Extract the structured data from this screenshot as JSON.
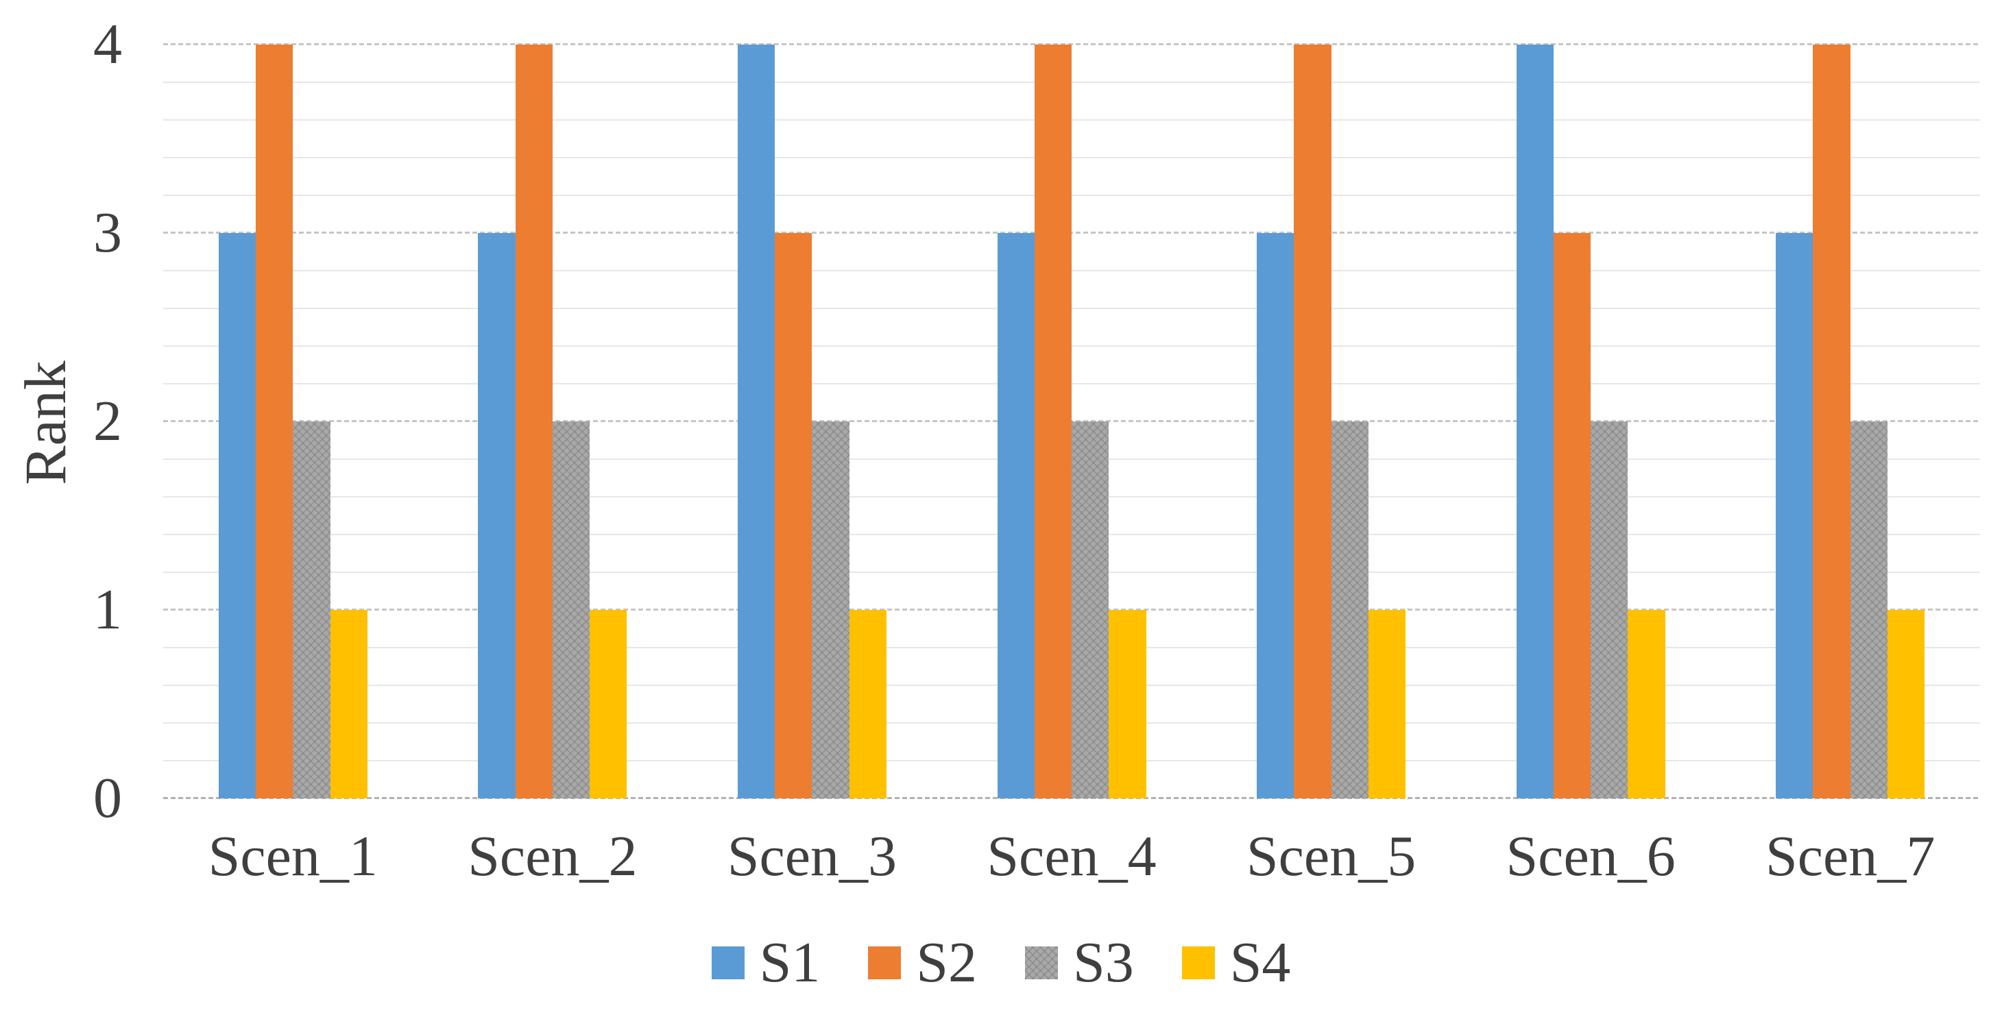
{
  "figure": {
    "background": "#FFFFFF",
    "text_color": "#3F3F3F"
  },
  "chart_data": {
    "type": "bar",
    "title": "",
    "xlabel": "",
    "ylabel": "Rank",
    "categories": [
      "Scen_1",
      "Scen_2",
      "Scen_3",
      "Scen_4",
      "Scen_5",
      "Scen_6",
      "Scen_7"
    ],
    "series": [
      {
        "name": "S1",
        "color": "#5B9BD5",
        "pattern": false,
        "values": [
          3,
          3,
          4,
          3,
          3,
          4,
          3
        ]
      },
      {
        "name": "S2",
        "color": "#ED7D31",
        "pattern": false,
        "values": [
          4,
          4,
          3,
          4,
          4,
          3,
          4
        ]
      },
      {
        "name": "S3",
        "color": "#A9A9A9",
        "pattern": true,
        "values": [
          2,
          2,
          2,
          2,
          2,
          2,
          2
        ]
      },
      {
        "name": "S4",
        "color": "#FFC000",
        "pattern": false,
        "values": [
          1,
          1,
          1,
          1,
          1,
          1,
          1
        ]
      }
    ],
    "ylim": [
      0,
      4
    ],
    "yticks": [
      0,
      1,
      2,
      3,
      4
    ],
    "minor_unit": 0.2,
    "grid": {
      "orientation": "horizontal",
      "major_style": "dashed",
      "minor_style": "solid"
    },
    "gridline_major_color": "#C6C6C6",
    "gridline_minor_color": "#E7E7E7",
    "legend_position": "bottom-center"
  }
}
